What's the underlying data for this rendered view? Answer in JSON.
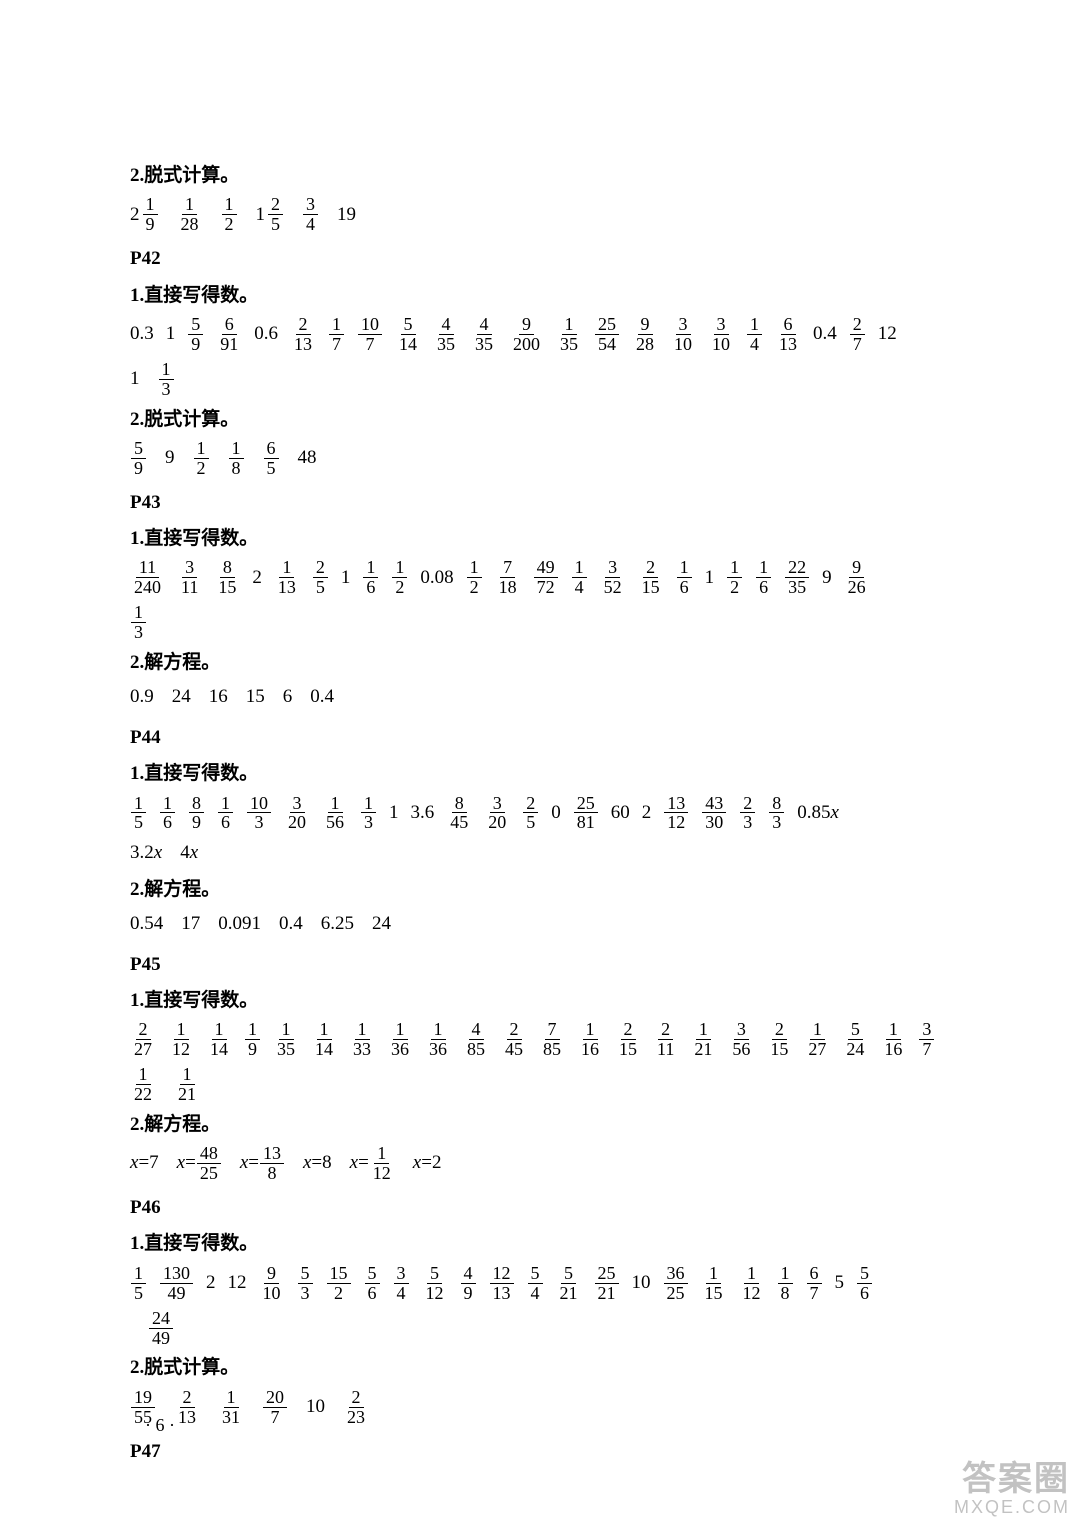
{
  "sections": [
    {
      "page": null,
      "blocks": [
        {
          "label": "2.脱式计算。",
          "rows": [
            [
              {
                "t": "mixed",
                "w": "2",
                "n": "1",
                "d": "9"
              },
              {
                "t": "frac",
                "n": "1",
                "d": "28"
              },
              {
                "t": "frac",
                "n": "1",
                "d": "2"
              },
              {
                "t": "mixed",
                "w": "1",
                "n": "2",
                "d": "5"
              },
              {
                "t": "frac",
                "n": "3",
                "d": "4"
              },
              {
                "t": "text",
                "v": "19"
              }
            ]
          ]
        }
      ]
    },
    {
      "page": "P42",
      "blocks": [
        {
          "label": "1.直接写得数。",
          "rows": [
            [
              {
                "t": "text",
                "v": "0.3"
              },
              {
                "t": "text",
                "v": "1"
              },
              {
                "t": "frac",
                "n": "5",
                "d": "9"
              },
              {
                "t": "frac",
                "n": "6",
                "d": "91"
              },
              {
                "t": "text",
                "v": "0.6"
              },
              {
                "t": "frac",
                "n": "2",
                "d": "13"
              },
              {
                "t": "frac",
                "n": "1",
                "d": "7"
              },
              {
                "t": "frac",
                "n": "10",
                "d": "7"
              },
              {
                "t": "frac",
                "n": "5",
                "d": "14"
              },
              {
                "t": "frac",
                "n": "4",
                "d": "35"
              },
              {
                "t": "frac",
                "n": "4",
                "d": "35"
              },
              {
                "t": "frac",
                "n": "9",
                "d": "200"
              },
              {
                "t": "frac",
                "n": "1",
                "d": "35"
              },
              {
                "t": "frac",
                "n": "25",
                "d": "54"
              },
              {
                "t": "frac",
                "n": "9",
                "d": "28"
              },
              {
                "t": "frac",
                "n": "3",
                "d": "10"
              },
              {
                "t": "frac",
                "n": "3",
                "d": "10"
              },
              {
                "t": "frac",
                "n": "1",
                "d": "4"
              },
              {
                "t": "frac",
                "n": "6",
                "d": "13"
              },
              {
                "t": "text",
                "v": "0.4"
              },
              {
                "t": "frac",
                "n": "2",
                "d": "7"
              },
              {
                "t": "text",
                "v": "12"
              }
            ],
            [
              {
                "t": "text",
                "v": "1"
              },
              {
                "t": "frac",
                "n": "1",
                "d": "3"
              }
            ]
          ]
        },
        {
          "label": "2.脱式计算。",
          "rows": [
            [
              {
                "t": "frac",
                "n": "5",
                "d": "9"
              },
              {
                "t": "text",
                "v": "9"
              },
              {
                "t": "frac",
                "n": "1",
                "d": "2"
              },
              {
                "t": "frac",
                "n": "1",
                "d": "8"
              },
              {
                "t": "frac",
                "n": "6",
                "d": "5"
              },
              {
                "t": "text",
                "v": "48"
              }
            ]
          ]
        }
      ]
    },
    {
      "page": "P43",
      "blocks": [
        {
          "label": "1.直接写得数。",
          "rows": [
            [
              {
                "t": "frac",
                "n": "11",
                "d": "240"
              },
              {
                "t": "frac",
                "n": "3",
                "d": "11"
              },
              {
                "t": "frac",
                "n": "8",
                "d": "15"
              },
              {
                "t": "text",
                "v": "2"
              },
              {
                "t": "frac",
                "n": "1",
                "d": "13"
              },
              {
                "t": "frac",
                "n": "2",
                "d": "5"
              },
              {
                "t": "text",
                "v": "1"
              },
              {
                "t": "frac",
                "n": "1",
                "d": "6"
              },
              {
                "t": "frac",
                "n": "1",
                "d": "2"
              },
              {
                "t": "text",
                "v": "0.08"
              },
              {
                "t": "frac",
                "n": "1",
                "d": "2"
              },
              {
                "t": "frac",
                "n": "7",
                "d": "18"
              },
              {
                "t": "frac",
                "n": "49",
                "d": "72"
              },
              {
                "t": "frac",
                "n": "1",
                "d": "4"
              },
              {
                "t": "frac",
                "n": "3",
                "d": "52"
              },
              {
                "t": "frac",
                "n": "2",
                "d": "15"
              },
              {
                "t": "frac",
                "n": "1",
                "d": "6"
              },
              {
                "t": "text",
                "v": "1"
              },
              {
                "t": "frac",
                "n": "1",
                "d": "2"
              },
              {
                "t": "frac",
                "n": "1",
                "d": "6"
              },
              {
                "t": "frac",
                "n": "22",
                "d": "35"
              },
              {
                "t": "text",
                "v": "9"
              },
              {
                "t": "frac",
                "n": "9",
                "d": "26"
              }
            ],
            [
              {
                "t": "frac",
                "n": "1",
                "d": "3"
              }
            ]
          ]
        },
        {
          "label": "2.解方程。",
          "rows": [
            [
              {
                "t": "text",
                "v": "0.9"
              },
              {
                "t": "text",
                "v": "24"
              },
              {
                "t": "text",
                "v": "16"
              },
              {
                "t": "text",
                "v": "15"
              },
              {
                "t": "text",
                "v": "6"
              },
              {
                "t": "text",
                "v": "0.4"
              }
            ]
          ]
        }
      ]
    },
    {
      "page": "P44",
      "blocks": [
        {
          "label": "1.直接写得数。",
          "rows": [
            [
              {
                "t": "frac",
                "n": "1",
                "d": "5"
              },
              {
                "t": "frac",
                "n": "1",
                "d": "6"
              },
              {
                "t": "frac",
                "n": "8",
                "d": "9"
              },
              {
                "t": "frac",
                "n": "1",
                "d": "6"
              },
              {
                "t": "frac",
                "n": "10",
                "d": "3"
              },
              {
                "t": "frac",
                "n": "3",
                "d": "20"
              },
              {
                "t": "frac",
                "n": "1",
                "d": "56"
              },
              {
                "t": "frac",
                "n": "1",
                "d": "3"
              },
              {
                "t": "text",
                "v": "1"
              },
              {
                "t": "text",
                "v": "3.6"
              },
              {
                "t": "frac",
                "n": "8",
                "d": "45"
              },
              {
                "t": "frac",
                "n": "3",
                "d": "20"
              },
              {
                "t": "frac",
                "n": "2",
                "d": "5"
              },
              {
                "t": "text",
                "v": "0"
              },
              {
                "t": "frac",
                "n": "25",
                "d": "81"
              },
              {
                "t": "text",
                "v": "60"
              },
              {
                "t": "text",
                "v": "2"
              },
              {
                "t": "frac",
                "n": "13",
                "d": "12"
              },
              {
                "t": "frac",
                "n": "43",
                "d": "30"
              },
              {
                "t": "frac",
                "n": "2",
                "d": "3"
              },
              {
                "t": "frac",
                "n": "8",
                "d": "3"
              },
              {
                "t": "expr",
                "pre": "0.85",
                "var": "x"
              }
            ],
            [
              {
                "t": "expr",
                "pre": "3.2",
                "var": "x"
              },
              {
                "t": "expr",
                "pre": "4",
                "var": "x"
              }
            ]
          ]
        },
        {
          "label": "2.解方程。",
          "rows": [
            [
              {
                "t": "text",
                "v": "0.54"
              },
              {
                "t": "text",
                "v": "17"
              },
              {
                "t": "text",
                "v": "0.091"
              },
              {
                "t": "text",
                "v": "0.4"
              },
              {
                "t": "text",
                "v": "6.25"
              },
              {
                "t": "text",
                "v": "24"
              }
            ]
          ]
        }
      ]
    },
    {
      "page": "P45",
      "blocks": [
        {
          "label": "1.直接写得数。",
          "rows": [
            [
              {
                "t": "frac",
                "n": "2",
                "d": "27"
              },
              {
                "t": "frac",
                "n": "1",
                "d": "12"
              },
              {
                "t": "frac",
                "n": "1",
                "d": "14"
              },
              {
                "t": "frac",
                "n": "1",
                "d": "9"
              },
              {
                "t": "frac",
                "n": "1",
                "d": "35"
              },
              {
                "t": "frac",
                "n": "1",
                "d": "14"
              },
              {
                "t": "frac",
                "n": "1",
                "d": "33"
              },
              {
                "t": "frac",
                "n": "1",
                "d": "36"
              },
              {
                "t": "frac",
                "n": "1",
                "d": "36"
              },
              {
                "t": "frac",
                "n": "4",
                "d": "85"
              },
              {
                "t": "frac",
                "n": "2",
                "d": "45"
              },
              {
                "t": "frac",
                "n": "7",
                "d": "85"
              },
              {
                "t": "frac",
                "n": "1",
                "d": "16"
              },
              {
                "t": "frac",
                "n": "2",
                "d": "15"
              },
              {
                "t": "frac",
                "n": "2",
                "d": "11"
              },
              {
                "t": "frac",
                "n": "1",
                "d": "21"
              },
              {
                "t": "frac",
                "n": "3",
                "d": "56"
              },
              {
                "t": "frac",
                "n": "2",
                "d": "15"
              },
              {
                "t": "frac",
                "n": "1",
                "d": "27"
              },
              {
                "t": "frac",
                "n": "5",
                "d": "24"
              },
              {
                "t": "frac",
                "n": "1",
                "d": "16"
              },
              {
                "t": "frac",
                "n": "3",
                "d": "7"
              }
            ],
            [
              {
                "t": "frac",
                "n": "1",
                "d": "22"
              },
              {
                "t": "frac",
                "n": "1",
                "d": "21"
              }
            ]
          ]
        },
        {
          "label": "2.解方程。",
          "rows": [
            [
              {
                "t": "eq",
                "lhs": "x",
                "rhs": {
                  "t": "text",
                  "v": "7"
                }
              },
              {
                "t": "eq",
                "lhs": "x",
                "rhs": {
                  "t": "frac",
                  "n": "48",
                  "d": "25"
                }
              },
              {
                "t": "eq",
                "lhs": "x",
                "rhs": {
                  "t": "frac",
                  "n": "13",
                  "d": "8"
                }
              },
              {
                "t": "eq",
                "lhs": "x",
                "rhs": {
                  "t": "text",
                  "v": "8"
                }
              },
              {
                "t": "eq",
                "lhs": "x",
                "rhs": {
                  "t": "frac",
                  "n": "1",
                  "d": "12"
                }
              },
              {
                "t": "eq",
                "lhs": "x",
                "rhs": {
                  "t": "text",
                  "v": "2"
                }
              }
            ]
          ]
        }
      ]
    },
    {
      "page": "P46",
      "blocks": [
        {
          "label": "1.直接写得数。",
          "rows": [
            [
              {
                "t": "frac",
                "n": "1",
                "d": "5"
              },
              {
                "t": "frac",
                "n": "130",
                "d": "49"
              },
              {
                "t": "text",
                "v": "2"
              },
              {
                "t": "text",
                "v": "12"
              },
              {
                "t": "frac",
                "n": "9",
                "d": "10"
              },
              {
                "t": "frac",
                "n": "5",
                "d": "3"
              },
              {
                "t": "frac",
                "n": "15",
                "d": "2"
              },
              {
                "t": "frac",
                "n": "5",
                "d": "6"
              },
              {
                "t": "frac",
                "n": "3",
                "d": "4"
              },
              {
                "t": "frac",
                "n": "5",
                "d": "12"
              },
              {
                "t": "frac",
                "n": "4",
                "d": "9"
              },
              {
                "t": "frac",
                "n": "12",
                "d": "13"
              },
              {
                "t": "frac",
                "n": "5",
                "d": "4"
              },
              {
                "t": "frac",
                "n": "5",
                "d": "21"
              },
              {
                "t": "frac",
                "n": "25",
                "d": "21"
              },
              {
                "t": "text",
                "v": "10"
              },
              {
                "t": "frac",
                "n": "36",
                "d": "25"
              },
              {
                "t": "frac",
                "n": "1",
                "d": "15"
              },
              {
                "t": "frac",
                "n": "1",
                "d": "12"
              },
              {
                "t": "frac",
                "n": "1",
                "d": "8"
              },
              {
                "t": "frac",
                "n": "6",
                "d": "7"
              },
              {
                "t": "text",
                "v": "5"
              },
              {
                "t": "frac",
                "n": "5",
                "d": "6"
              }
            ],
            [
              {
                "t": "frac",
                "n": "24",
                "d": "49",
                "indent": true
              }
            ]
          ]
        },
        {
          "label": "2.脱式计算。",
          "rows": [
            [
              {
                "t": "frac",
                "n": "19",
                "d": "55"
              },
              {
                "t": "frac",
                "n": "2",
                "d": "13"
              },
              {
                "t": "frac",
                "n": "1",
                "d": "31"
              },
              {
                "t": "frac",
                "n": "20",
                "d": "7"
              },
              {
                "t": "text",
                "v": "10"
              },
              {
                "t": "frac",
                "n": "2",
                "d": "23"
              }
            ]
          ]
        }
      ]
    },
    {
      "page": "P47",
      "blocks": []
    }
  ],
  "page_number": "· 6 ·",
  "watermark": {
    "line1": "答案圈",
    "line2": "MXQE.COM"
  }
}
